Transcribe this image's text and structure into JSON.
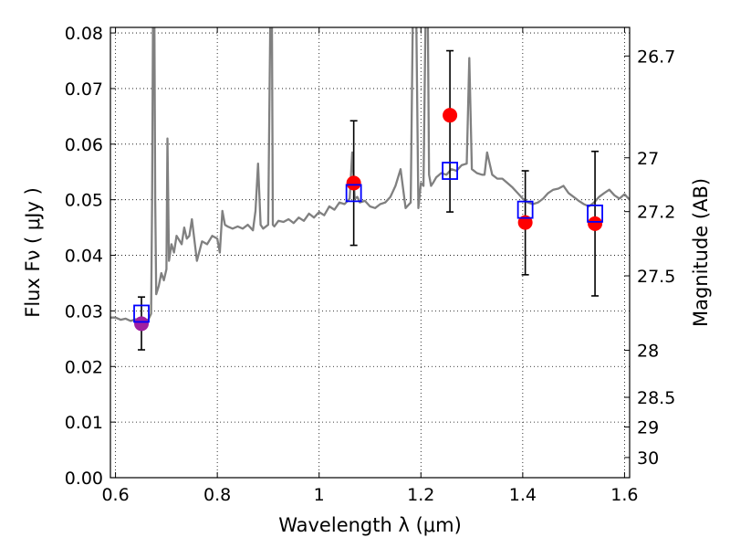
{
  "chart_data": {
    "type": "scatter",
    "xlabel": "Wavelength  λ (μm)",
    "ylabel": "Flux  Fν  ( μJy )",
    "y2label": "Magnitude (AB)",
    "xlim": [
      0.59,
      1.61
    ],
    "ylim": [
      0.0,
      0.081
    ],
    "grid": true,
    "x_ticks": [
      "0.6",
      "0.8",
      "1",
      "1.2",
      "1.4",
      "1.6"
    ],
    "x_tick_values": [
      0.6,
      0.8,
      1.0,
      1.2,
      1.4,
      1.6
    ],
    "y_ticks": [
      "0.00",
      "0.01",
      "0.02",
      "0.03",
      "0.04",
      "0.05",
      "0.06",
      "0.07",
      "0.08"
    ],
    "y_tick_values": [
      0.0,
      0.01,
      0.02,
      0.03,
      0.04,
      0.05,
      0.06,
      0.07,
      0.08
    ],
    "right_ticks": [
      {
        "label": "26.7",
        "mag": 26.7
      },
      {
        "label": "27",
        "mag": 27.0
      },
      {
        "label": "27.2",
        "mag": 27.2
      },
      {
        "label": "27.5",
        "mag": 27.5
      },
      {
        "label": "28",
        "mag": 28.0
      },
      {
        "label": "28.5",
        "mag": 28.5
      },
      {
        "label": "29",
        "mag": 29.0
      },
      {
        "label": "30",
        "mag": 30.0
      }
    ],
    "series": [
      {
        "type": "line",
        "color": "#808080",
        "x": [
          0.59,
          0.6,
          0.61,
          0.62,
          0.63,
          0.64,
          0.645,
          0.65,
          0.66,
          0.665,
          0.67,
          0.672,
          0.674,
          0.676,
          0.678,
          0.68,
          0.685,
          0.69,
          0.695,
          0.7,
          0.702,
          0.705,
          0.71,
          0.715,
          0.72,
          0.73,
          0.735,
          0.74,
          0.745,
          0.75,
          0.76,
          0.77,
          0.78,
          0.79,
          0.8,
          0.805,
          0.81,
          0.815,
          0.82,
          0.83,
          0.84,
          0.85,
          0.86,
          0.87,
          0.875,
          0.88,
          0.885,
          0.89,
          0.9,
          0.905,
          0.907,
          0.909,
          0.912,
          0.92,
          0.93,
          0.94,
          0.95,
          0.96,
          0.97,
          0.98,
          0.99,
          1.0,
          1.01,
          1.02,
          1.03,
          1.04,
          1.05,
          1.06,
          1.065,
          1.07,
          1.075,
          1.08,
          1.09,
          1.1,
          1.11,
          1.12,
          1.13,
          1.14,
          1.15,
          1.16,
          1.17,
          1.18,
          1.185,
          1.19,
          1.195,
          1.2,
          1.205,
          1.21,
          1.213,
          1.216,
          1.22,
          1.225,
          1.23,
          1.24,
          1.25,
          1.26,
          1.27,
          1.28,
          1.29,
          1.295,
          1.3,
          1.31,
          1.32,
          1.325,
          1.33,
          1.34,
          1.35,
          1.36,
          1.37,
          1.38,
          1.39,
          1.4,
          1.41,
          1.42,
          1.43,
          1.44,
          1.45,
          1.46,
          1.47,
          1.48,
          1.49,
          1.5,
          1.51,
          1.52,
          1.53,
          1.54,
          1.55,
          1.56,
          1.57,
          1.58,
          1.59,
          1.6,
          1.61
        ],
        "y": [
          0.0288,
          0.0288,
          0.0284,
          0.0286,
          0.0282,
          0.0285,
          0.0281,
          0.0284,
          0.0283,
          0.0285,
          0.0295,
          0.05,
          0.09,
          0.09,
          0.05,
          0.033,
          0.0345,
          0.0368,
          0.0355,
          0.0375,
          0.061,
          0.039,
          0.042,
          0.0405,
          0.0435,
          0.042,
          0.045,
          0.043,
          0.0435,
          0.0465,
          0.039,
          0.0425,
          0.042,
          0.0435,
          0.043,
          0.0405,
          0.048,
          0.0455,
          0.0452,
          0.0448,
          0.0452,
          0.0448,
          0.0455,
          0.0445,
          0.048,
          0.0565,
          0.0455,
          0.0448,
          0.0455,
          0.09,
          0.09,
          0.0455,
          0.0452,
          0.0462,
          0.046,
          0.0465,
          0.0458,
          0.0468,
          0.0462,
          0.0475,
          0.0468,
          0.0478,
          0.0472,
          0.0488,
          0.0482,
          0.0495,
          0.0492,
          0.0502,
          0.0585,
          0.0502,
          0.0505,
          0.0495,
          0.0498,
          0.0488,
          0.0485,
          0.0492,
          0.0495,
          0.0505,
          0.0525,
          0.0555,
          0.0485,
          0.0495,
          0.09,
          0.09,
          0.0485,
          0.053,
          0.0525,
          0.09,
          0.09,
          0.0545,
          0.0525,
          0.0532,
          0.054,
          0.0548,
          0.0545,
          0.0555,
          0.0552,
          0.0562,
          0.0565,
          0.0755,
          0.0555,
          0.0548,
          0.0545,
          0.0545,
          0.0585,
          0.0545,
          0.0538,
          0.0538,
          0.053,
          0.0522,
          0.0512,
          0.0502,
          0.0495,
          0.0492,
          0.0495,
          0.0502,
          0.0512,
          0.0518,
          0.052,
          0.0525,
          0.0512,
          0.0505,
          0.0498,
          0.0492,
          0.0488,
          0.0495,
          0.0505,
          0.0512,
          0.0518,
          0.0508,
          0.0502,
          0.051,
          0.05
        ]
      },
      {
        "type": "errorbar",
        "color": "#000000",
        "x": [
          0.651,
          1.068,
          1.257,
          1.405,
          1.542
        ],
        "y": [
          0.0277,
          0.053,
          0.0652,
          0.0459,
          0.0457
        ],
        "yerr_low": [
          0.023,
          0.0418,
          0.0478,
          0.0365,
          0.0327
        ],
        "yerr_high": [
          0.0325,
          0.0642,
          0.0768,
          0.0552,
          0.0587
        ]
      },
      {
        "type": "scatter",
        "marker": "circle",
        "x": [
          0.651,
          1.068,
          1.257,
          1.405,
          1.542
        ],
        "y": [
          0.0277,
          0.053,
          0.0652,
          0.0459,
          0.0457
        ],
        "colors": [
          "#a020a0",
          "#ff0000",
          "#ff0000",
          "#ff0000",
          "#ff0000"
        ]
      },
      {
        "type": "scatter",
        "marker": "open-square",
        "color": "#0000ff",
        "x": [
          0.651,
          1.068,
          1.257,
          1.405,
          1.542
        ],
        "y": [
          0.0295,
          0.0512,
          0.0552,
          0.0482,
          0.0475
        ]
      }
    ]
  }
}
